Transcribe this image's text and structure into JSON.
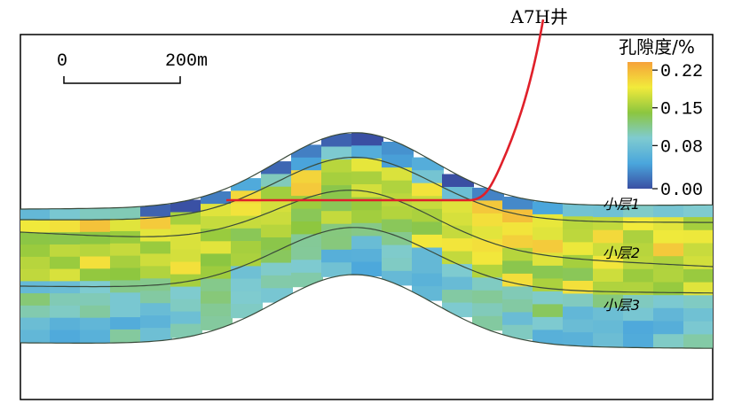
{
  "well": {
    "label": "A7H井",
    "color": "#e0202a"
  },
  "scale_bar": {
    "start_label": "0",
    "end_label": "200m"
  },
  "colorbar": {
    "title": "孔隙度/%",
    "ticks": [
      {
        "label": "0.22",
        "value": 0.22
      },
      {
        "label": "0.15",
        "value": 0.15
      },
      {
        "label": "0.08",
        "value": 0.08
      },
      {
        "label": "0.00",
        "value": 0.0
      }
    ],
    "stops": [
      "#3a4fa3",
      "#4aa6dc",
      "#7fcbd0",
      "#8cc63f",
      "#f2ea3b",
      "#f6a23a"
    ]
  },
  "layers": [
    {
      "label": "小层1"
    },
    {
      "label": "小层2"
    },
    {
      "label": "小层3"
    }
  ],
  "boundary_color": "#3a4a3a"
}
